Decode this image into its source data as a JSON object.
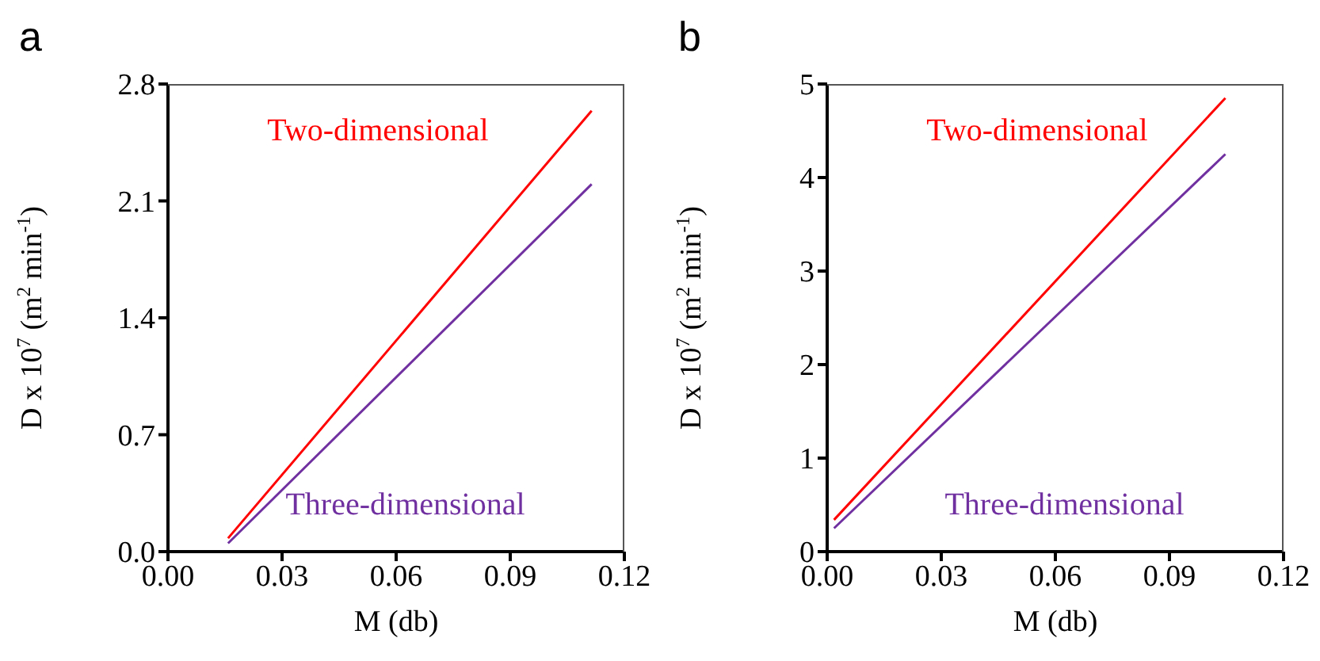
{
  "chart_data": [
    {
      "type": "line",
      "title": "a",
      "xlabel": "M (db)",
      "ylabel": "D x 10$^{7}$ (m$^{2}$ min$^{-1}$)",
      "xlim": [
        0,
        0.12
      ],
      "xticks": [
        {
          "value": 0,
          "label": "0.00"
        },
        0.03,
        0.06,
        0.09,
        0.12
      ],
      "ylim": [
        0,
        2.8
      ],
      "yticks": [
        {
          "value": 0,
          "label": "0.0"
        },
        0.7,
        1.4,
        2.1,
        2.8
      ],
      "grid": false,
      "legend": false,
      "marker": "none",
      "line_style": "solid",
      "series": [
        {
          "name": "Two-dimensional",
          "color": "#ff0000",
          "x": [
            0.0158,
            0.1114
          ],
          "values": [
            0.08,
            2.64
          ]
        },
        {
          "name": "Three-dimensional",
          "color": "#7030a0",
          "x": [
            0.0158,
            0.1114
          ],
          "values": [
            0.05,
            2.2
          ]
        }
      ]
    },
    {
      "type": "line",
      "title": "b",
      "xlabel": "M (db)",
      "ylabel": "D x 10$^{7}$ (m$^{2}$ min$^{-1}$)",
      "xlim": [
        0,
        0.12
      ],
      "xticks": [
        {
          "value": 0,
          "label": "0.00"
        },
        0.03,
        0.06,
        0.09,
        0.12
      ],
      "ylim": [
        0,
        5
      ],
      "yticks": [
        0,
        1,
        2,
        3,
        4,
        5
      ],
      "grid": false,
      "legend": false,
      "marker": "none",
      "line_style": "solid",
      "series": [
        {
          "name": "Two-dimensional",
          "color": "#ff0000",
          "x": [
            0.0018,
            0.1047
          ],
          "values": [
            0.34,
            4.85
          ]
        },
        {
          "name": "Three-dimensional",
          "color": "#7030a0",
          "x": [
            0.0018,
            0.1047
          ],
          "values": [
            0.25,
            4.25
          ]
        }
      ]
    }
  ]
}
